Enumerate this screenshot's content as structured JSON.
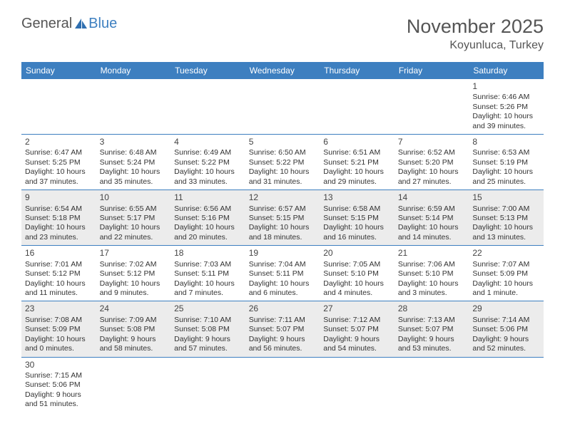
{
  "brand": {
    "general": "General",
    "blue": "Blue"
  },
  "title": "November 2025",
  "location": "Koyunluca, Turkey",
  "colors": {
    "header_bg": "#3d7fc0",
    "header_text": "#ffffff",
    "row_alt_bg": "#ececec",
    "row_bg": "#ffffff",
    "border": "#3d7fc0",
    "text": "#333333"
  },
  "dayHeaders": [
    "Sunday",
    "Monday",
    "Tuesday",
    "Wednesday",
    "Thursday",
    "Friday",
    "Saturday"
  ],
  "weeks": [
    [
      null,
      null,
      null,
      null,
      null,
      null,
      {
        "n": "1",
        "sr": "Sunrise: 6:46 AM",
        "ss": "Sunset: 5:26 PM",
        "d1": "Daylight: 10 hours",
        "d2": "and 39 minutes."
      }
    ],
    [
      {
        "n": "2",
        "sr": "Sunrise: 6:47 AM",
        "ss": "Sunset: 5:25 PM",
        "d1": "Daylight: 10 hours",
        "d2": "and 37 minutes."
      },
      {
        "n": "3",
        "sr": "Sunrise: 6:48 AM",
        "ss": "Sunset: 5:24 PM",
        "d1": "Daylight: 10 hours",
        "d2": "and 35 minutes."
      },
      {
        "n": "4",
        "sr": "Sunrise: 6:49 AM",
        "ss": "Sunset: 5:22 PM",
        "d1": "Daylight: 10 hours",
        "d2": "and 33 minutes."
      },
      {
        "n": "5",
        "sr": "Sunrise: 6:50 AM",
        "ss": "Sunset: 5:22 PM",
        "d1": "Daylight: 10 hours",
        "d2": "and 31 minutes."
      },
      {
        "n": "6",
        "sr": "Sunrise: 6:51 AM",
        "ss": "Sunset: 5:21 PM",
        "d1": "Daylight: 10 hours",
        "d2": "and 29 minutes."
      },
      {
        "n": "7",
        "sr": "Sunrise: 6:52 AM",
        "ss": "Sunset: 5:20 PM",
        "d1": "Daylight: 10 hours",
        "d2": "and 27 minutes."
      },
      {
        "n": "8",
        "sr": "Sunrise: 6:53 AM",
        "ss": "Sunset: 5:19 PM",
        "d1": "Daylight: 10 hours",
        "d2": "and 25 minutes."
      }
    ],
    [
      {
        "n": "9",
        "sr": "Sunrise: 6:54 AM",
        "ss": "Sunset: 5:18 PM",
        "d1": "Daylight: 10 hours",
        "d2": "and 23 minutes."
      },
      {
        "n": "10",
        "sr": "Sunrise: 6:55 AM",
        "ss": "Sunset: 5:17 PM",
        "d1": "Daylight: 10 hours",
        "d2": "and 22 minutes."
      },
      {
        "n": "11",
        "sr": "Sunrise: 6:56 AM",
        "ss": "Sunset: 5:16 PM",
        "d1": "Daylight: 10 hours",
        "d2": "and 20 minutes."
      },
      {
        "n": "12",
        "sr": "Sunrise: 6:57 AM",
        "ss": "Sunset: 5:15 PM",
        "d1": "Daylight: 10 hours",
        "d2": "and 18 minutes."
      },
      {
        "n": "13",
        "sr": "Sunrise: 6:58 AM",
        "ss": "Sunset: 5:15 PM",
        "d1": "Daylight: 10 hours",
        "d2": "and 16 minutes."
      },
      {
        "n": "14",
        "sr": "Sunrise: 6:59 AM",
        "ss": "Sunset: 5:14 PM",
        "d1": "Daylight: 10 hours",
        "d2": "and 14 minutes."
      },
      {
        "n": "15",
        "sr": "Sunrise: 7:00 AM",
        "ss": "Sunset: 5:13 PM",
        "d1": "Daylight: 10 hours",
        "d2": "and 13 minutes."
      }
    ],
    [
      {
        "n": "16",
        "sr": "Sunrise: 7:01 AM",
        "ss": "Sunset: 5:12 PM",
        "d1": "Daylight: 10 hours",
        "d2": "and 11 minutes."
      },
      {
        "n": "17",
        "sr": "Sunrise: 7:02 AM",
        "ss": "Sunset: 5:12 PM",
        "d1": "Daylight: 10 hours",
        "d2": "and 9 minutes."
      },
      {
        "n": "18",
        "sr": "Sunrise: 7:03 AM",
        "ss": "Sunset: 5:11 PM",
        "d1": "Daylight: 10 hours",
        "d2": "and 7 minutes."
      },
      {
        "n": "19",
        "sr": "Sunrise: 7:04 AM",
        "ss": "Sunset: 5:11 PM",
        "d1": "Daylight: 10 hours",
        "d2": "and 6 minutes."
      },
      {
        "n": "20",
        "sr": "Sunrise: 7:05 AM",
        "ss": "Sunset: 5:10 PM",
        "d1": "Daylight: 10 hours",
        "d2": "and 4 minutes."
      },
      {
        "n": "21",
        "sr": "Sunrise: 7:06 AM",
        "ss": "Sunset: 5:10 PM",
        "d1": "Daylight: 10 hours",
        "d2": "and 3 minutes."
      },
      {
        "n": "22",
        "sr": "Sunrise: 7:07 AM",
        "ss": "Sunset: 5:09 PM",
        "d1": "Daylight: 10 hours",
        "d2": "and 1 minute."
      }
    ],
    [
      {
        "n": "23",
        "sr": "Sunrise: 7:08 AM",
        "ss": "Sunset: 5:09 PM",
        "d1": "Daylight: 10 hours",
        "d2": "and 0 minutes."
      },
      {
        "n": "24",
        "sr": "Sunrise: 7:09 AM",
        "ss": "Sunset: 5:08 PM",
        "d1": "Daylight: 9 hours",
        "d2": "and 58 minutes."
      },
      {
        "n": "25",
        "sr": "Sunrise: 7:10 AM",
        "ss": "Sunset: 5:08 PM",
        "d1": "Daylight: 9 hours",
        "d2": "and 57 minutes."
      },
      {
        "n": "26",
        "sr": "Sunrise: 7:11 AM",
        "ss": "Sunset: 5:07 PM",
        "d1": "Daylight: 9 hours",
        "d2": "and 56 minutes."
      },
      {
        "n": "27",
        "sr": "Sunrise: 7:12 AM",
        "ss": "Sunset: 5:07 PM",
        "d1": "Daylight: 9 hours",
        "d2": "and 54 minutes."
      },
      {
        "n": "28",
        "sr": "Sunrise: 7:13 AM",
        "ss": "Sunset: 5:07 PM",
        "d1": "Daylight: 9 hours",
        "d2": "and 53 minutes."
      },
      {
        "n": "29",
        "sr": "Sunrise: 7:14 AM",
        "ss": "Sunset: 5:06 PM",
        "d1": "Daylight: 9 hours",
        "d2": "and 52 minutes."
      }
    ],
    [
      {
        "n": "30",
        "sr": "Sunrise: 7:15 AM",
        "ss": "Sunset: 5:06 PM",
        "d1": "Daylight: 9 hours",
        "d2": "and 51 minutes."
      },
      null,
      null,
      null,
      null,
      null,
      null
    ]
  ]
}
